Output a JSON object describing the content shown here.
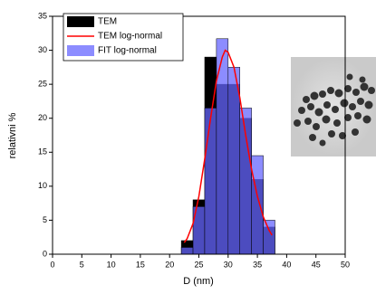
{
  "chart_data": {
    "type": "histogram",
    "xlabel": "D (nm)",
    "ylabel": "relativni %",
    "bins": [
      22,
      24,
      26,
      28,
      30,
      32,
      34,
      36,
      38
    ],
    "series": [
      {
        "name": "TEM",
        "color": "#000000",
        "opacity": 1,
        "values": [
          2,
          8,
          29,
          25,
          25,
          20,
          11,
          4
        ]
      },
      {
        "name": "FIT log-normal",
        "color": "#6666ff",
        "opacity": 0.75,
        "values": [
          1,
          7,
          21.5,
          31.7,
          27.5,
          21.5,
          14.5,
          5
        ]
      }
    ],
    "lines": [
      {
        "name": "TEM log-normal",
        "color": "#ff0000",
        "x": [
          22.5,
          23,
          24,
          25,
          26,
          27,
          28,
          29,
          29.5,
          30,
          31,
          32,
          33,
          34,
          35,
          36,
          37,
          37.5
        ],
        "values": [
          1.7,
          2.3,
          4.5,
          8.5,
          14,
          20,
          25.5,
          29,
          30,
          29.7,
          27.5,
          23,
          17.5,
          12.5,
          8.5,
          5.5,
          3.5,
          2.8
        ]
      }
    ],
    "legend": [
      "TEM",
      "TEM log-normal",
      "FIT log-normal"
    ],
    "xlim": [
      0,
      50
    ],
    "xticks": [
      0,
      5,
      10,
      15,
      20,
      25,
      30,
      35,
      40,
      45,
      50
    ],
    "ylim": [
      0,
      35
    ],
    "yticks": [
      0,
      5,
      10,
      15,
      20,
      25,
      30,
      35
    ]
  }
}
